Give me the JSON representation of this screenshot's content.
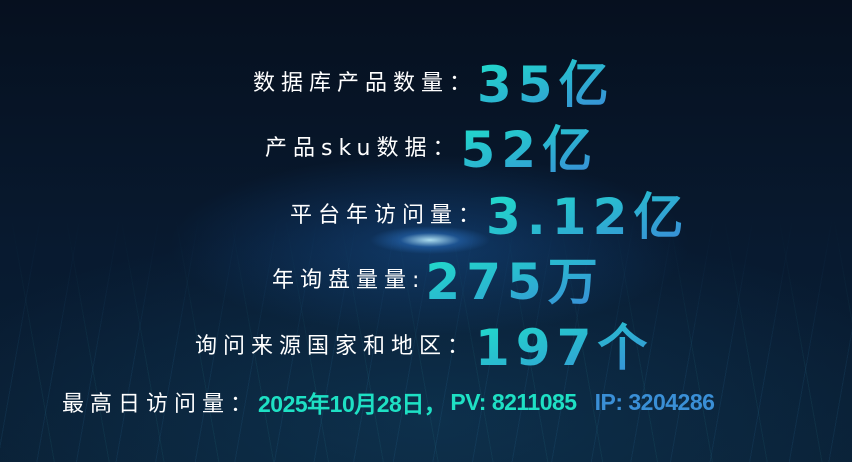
{
  "stats": [
    {
      "label": "数据库产品数量：",
      "value": "35亿"
    },
    {
      "label": "产品sku数据：",
      "value": "52亿"
    },
    {
      "label": "平台年访问量：",
      "value": "3.12亿"
    },
    {
      "label": "年询盘量量:",
      "value": "275万"
    },
    {
      "label": "询问来源国家和地区：",
      "value": "197个"
    }
  ],
  "peak": {
    "label": "最高日访问量：",
    "date": "2025年10月28日，",
    "pv": "PV: 8211085",
    "ip": "IP: 3204286"
  },
  "colors": {
    "teal": "#1ee0c4",
    "blue": "#3a8fd6",
    "background": "#07142a"
  }
}
